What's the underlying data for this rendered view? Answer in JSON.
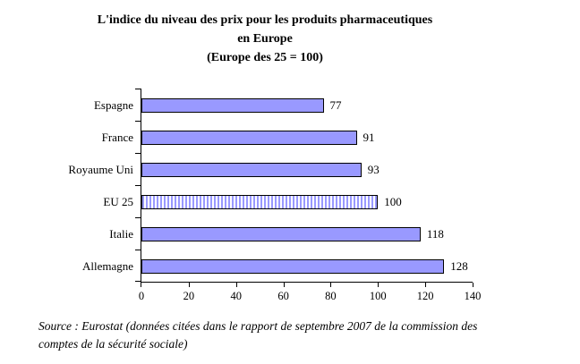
{
  "chart": {
    "title_lines": [
      "L'indice du niveau des prix pour les produits pharmaceutiques",
      "en Europe",
      "(Europe des 25 = 100)"
    ]
  },
  "chart_data": {
    "type": "bar",
    "orientation": "horizontal",
    "title": "L'indice du niveau des prix pour les produits pharmaceutiques en Europe (Europe des 25 = 100)",
    "categories": [
      "Espagne",
      "France",
      "Royaume Uni",
      "EU 25",
      "Italie",
      "Allemagne"
    ],
    "values": [
      77,
      91,
      93,
      100,
      118,
      128
    ],
    "data_labels": [
      "77",
      "91",
      "93",
      "100",
      "118",
      "128"
    ],
    "xlim": [
      0,
      140
    ],
    "x_ticks": [
      0,
      20,
      40,
      60,
      80,
      100,
      120,
      140
    ],
    "xlabel": "",
    "ylabel": "",
    "grid": false,
    "legend": false,
    "bar_color": "#9999ff",
    "bar_border_color": "#000000",
    "reference_bar": {
      "category": "EU 25",
      "pattern": "vertical-stripes"
    }
  },
  "source": {
    "text": "Source : Eurostat (données citées dans le rapport de septembre 2007 de la commission des comptes de la sécurité sociale)"
  }
}
